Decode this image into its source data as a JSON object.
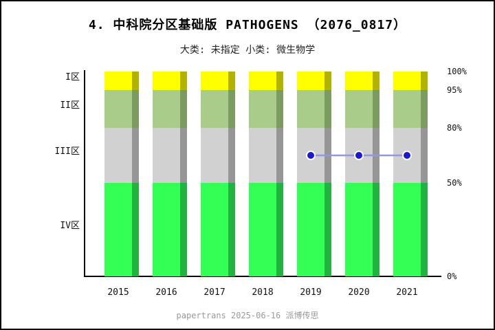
{
  "header": {
    "title": "4. 中科院分区基础版 PATHOGENS （2076_0817）",
    "subtitle": "大类: 未指定 小类: 微生物学"
  },
  "footer": {
    "credit": "papertrans 2025-06-16 派博传思"
  },
  "chart_data": {
    "type": "bar",
    "subtype": "stacked-percent-zones-with-line",
    "title": "4. 中科院分区基础版 PATHOGENS （2076_0817）",
    "subtitle": "大类: 未指定 小类: 微生物学",
    "categories": [
      "2015",
      "2016",
      "2017",
      "2018",
      "2019",
      "2020",
      "2021"
    ],
    "zones": [
      {
        "label": "IV区",
        "from_pct": 0,
        "to_pct": 50,
        "color": "#33ff55",
        "shadow_color": "#21b33f"
      },
      {
        "label": "III区",
        "from_pct": 50,
        "to_pct": 80,
        "color": "#d1d1d1",
        "shadow_color": "#969696"
      },
      {
        "label": "II区",
        "from_pct": 80,
        "to_pct": 95,
        "color": "#a9cc8b",
        "shadow_color": "#7b9b60"
      },
      {
        "label": "I区",
        "from_pct": 95,
        "to_pct": 100,
        "color": "#ffff00",
        "shadow_color": "#b2b200"
      }
    ],
    "bars": [
      {
        "year": "2015",
        "segments_pct": [
          50,
          30,
          15,
          5
        ]
      },
      {
        "year": "2016",
        "segments_pct": [
          50,
          30,
          15,
          5
        ]
      },
      {
        "year": "2017",
        "segments_pct": [
          50,
          30,
          15,
          5
        ]
      },
      {
        "year": "2018",
        "segments_pct": [
          50,
          30,
          15,
          5
        ]
      },
      {
        "year": "2019",
        "segments_pct": [
          50,
          30,
          15,
          5
        ]
      },
      {
        "year": "2020",
        "segments_pct": [
          50,
          30,
          15,
          5
        ]
      },
      {
        "year": "2021",
        "segments_pct": [
          50,
          30,
          15,
          5
        ]
      }
    ],
    "series": [
      {
        "name": "zone-rank-line",
        "type": "line",
        "line_color": "#9595e8",
        "marker_color": "#1a1ad1",
        "marker_edge_color": "#ffffff",
        "points": [
          {
            "x": "2019",
            "pct": 65,
            "zone": "III区"
          },
          {
            "x": "2020",
            "pct": 65,
            "zone": "III区"
          },
          {
            "x": "2021",
            "pct": 65,
            "zone": "III区"
          }
        ]
      }
    ],
    "y_axis": {
      "side": "right",
      "tick_pcts": [
        0,
        50,
        80,
        95,
        100
      ],
      "tick_labels": [
        "0%",
        "50%",
        "80%",
        "95%",
        "100%"
      ]
    },
    "x_axis": {
      "tick_labels": [
        "2015",
        "2016",
        "2017",
        "2018",
        "2019",
        "2020",
        "2021"
      ]
    },
    "zone_axis_labels": [
      "I区",
      "II区",
      "III区",
      "IV区"
    ],
    "legend": "none",
    "grid": false
  }
}
